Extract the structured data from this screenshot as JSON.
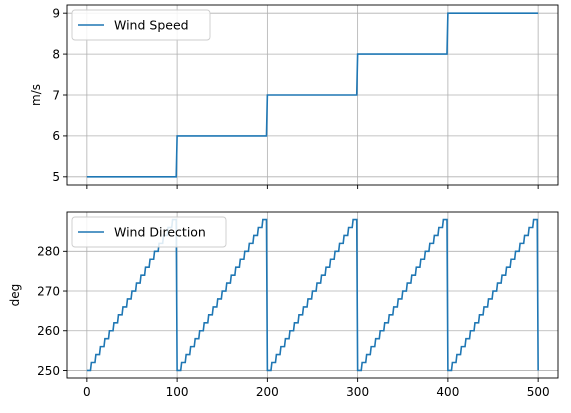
{
  "chart_data": [
    {
      "type": "line",
      "title": "",
      "xlabel": "",
      "ylabel": "m/s",
      "xlim": [
        -22,
        522
      ],
      "ylim": [
        4.8,
        9.2
      ],
      "x_ticks": [
        0,
        100,
        200,
        300,
        400,
        500
      ],
      "x_tick_labels_visible": false,
      "y_ticks": [
        5,
        6,
        7,
        8,
        9
      ],
      "grid": true,
      "legend": "upper left",
      "series": [
        {
          "name": "Wind Speed",
          "color": "#1f77b4",
          "x": [
            0,
            99,
            100,
            199,
            200,
            299,
            300,
            399,
            400,
            500
          ],
          "y": [
            5,
            5,
            6,
            6,
            7,
            7,
            8,
            8,
            9,
            9
          ]
        }
      ]
    },
    {
      "type": "line",
      "title": "",
      "xlabel": "",
      "ylabel": "deg",
      "xlim": [
        -22,
        522
      ],
      "ylim": [
        248.1,
        289.9
      ],
      "x_ticks": [
        0,
        100,
        200,
        300,
        400,
        500
      ],
      "x_tick_labels_visible": true,
      "y_ticks": [
        250,
        260,
        270,
        280
      ],
      "grid": true,
      "legend": "upper left",
      "series": [
        {
          "name": "Wind Direction",
          "color": "#1f77b4",
          "description": "staircase ramp from 250 to 288 deg in 2-deg steps every 5 samples, resetting every 100 samples",
          "period": 100,
          "step_length": 5,
          "start_value": 250,
          "step_increment": 2,
          "x_start": 0,
          "x_end": 500
        }
      ]
    }
  ]
}
